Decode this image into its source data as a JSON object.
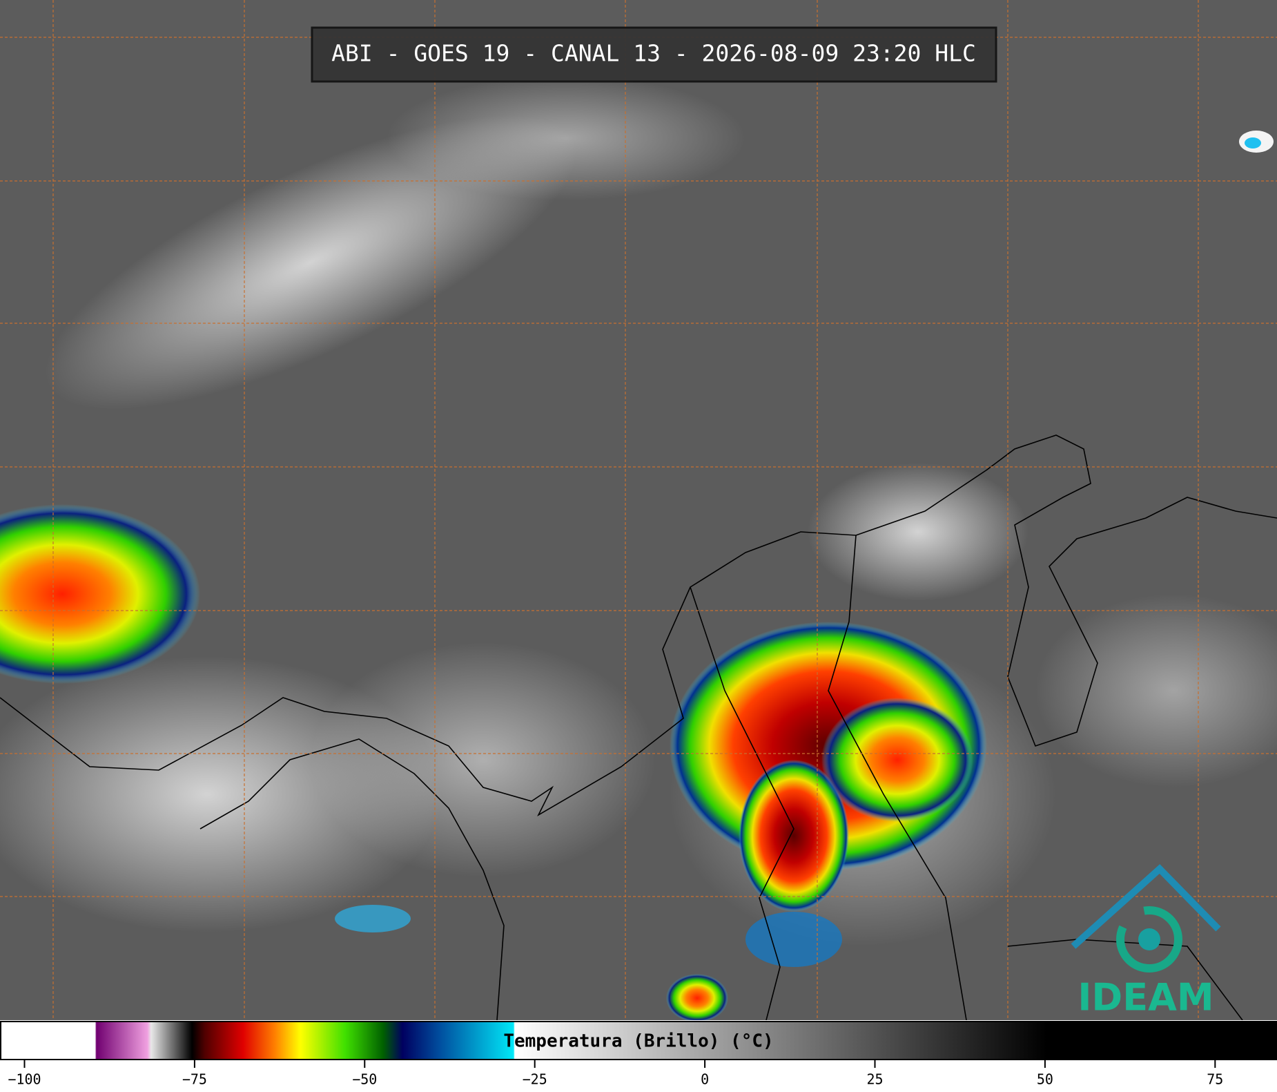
{
  "header": {
    "title": "ABI - GOES 19 - CANAL 13 - 2026-08-09 23:20 HLC"
  },
  "colorbar": {
    "label": "Temperatura (Brillo) (°C)",
    "range": [
      -103.6,
      84.1
    ],
    "ticks": [
      {
        "value": -100,
        "label": "−100"
      },
      {
        "value": -75,
        "label": "−75"
      },
      {
        "value": -50,
        "label": "−50"
      },
      {
        "value": -25,
        "label": "−25"
      },
      0,
      25,
      50,
      75
    ]
  },
  "logo": {
    "text": "IDEAM"
  }
}
